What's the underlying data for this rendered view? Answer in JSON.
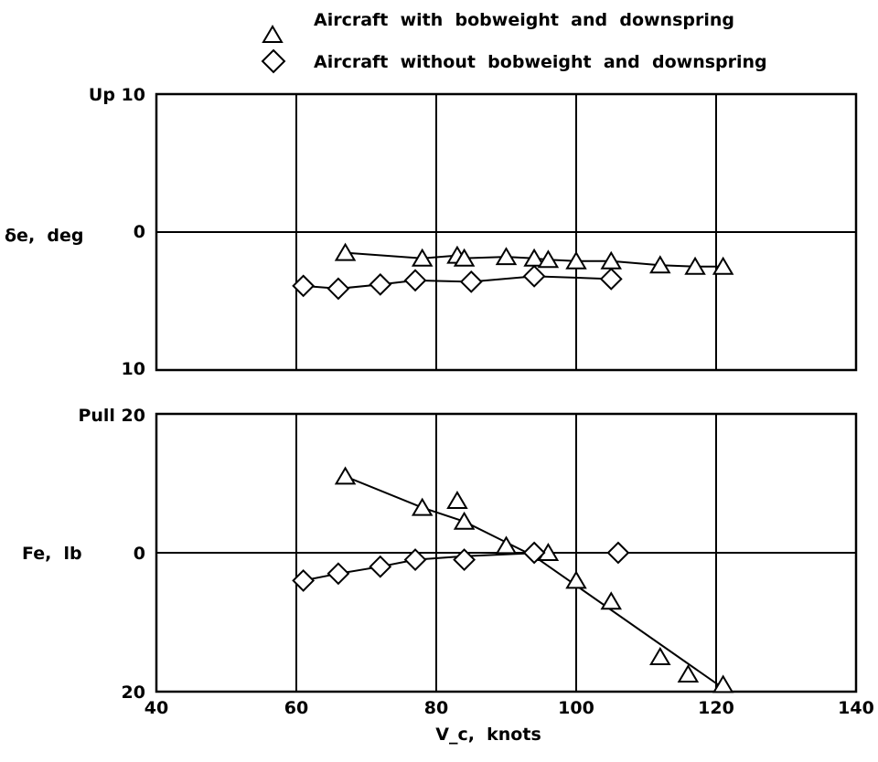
{
  "legend": {
    "items": [
      {
        "marker": "triangle",
        "label": "Aircraft  with  bobweight  and  downspring"
      },
      {
        "marker": "diamond",
        "label": "Aircraft  without  bobweight  and  downspring"
      }
    ]
  },
  "chart_data": [
    {
      "type": "line",
      "panel": "top",
      "ylabel": "δe,  deg",
      "xlim": [
        40,
        140
      ],
      "ylim": [
        -10,
        10
      ],
      "ytick_labels": [
        {
          "value": 10,
          "text": "Up 10"
        },
        {
          "value": 0,
          "text": "0"
        },
        {
          "value": -10,
          "text": "10"
        }
      ],
      "grid": true,
      "series": [
        {
          "name": "Aircraft  with  bobweight  and  downspring",
          "marker": "triangle",
          "x": [
            67,
            78,
            83,
            84,
            90,
            94,
            96,
            100,
            105,
            112,
            117,
            121
          ],
          "y": [
            -1.5,
            -1.9,
            -1.7,
            -1.9,
            -1.8,
            -1.9,
            -2.0,
            -2.1,
            -2.1,
            -2.4,
            -2.5,
            -2.5
          ]
        },
        {
          "name": "Aircraft  without  bobweight  and  downspring",
          "marker": "diamond",
          "x": [
            61,
            66,
            72,
            77,
            85,
            94,
            105
          ],
          "y": [
            -3.9,
            -4.1,
            -3.8,
            -3.5,
            -3.6,
            -3.2,
            -3.4
          ]
        }
      ]
    },
    {
      "type": "line",
      "panel": "bottom",
      "xlabel": "V_c,  knots",
      "ylabel": "Fe,  lb",
      "xlim": [
        40,
        140
      ],
      "ylim": [
        -20,
        20
      ],
      "xticks": [
        40,
        60,
        80,
        100,
        120,
        140
      ],
      "ytick_labels": [
        {
          "value": 20,
          "text": "Pull 20"
        },
        {
          "value": 0,
          "text": "0"
        },
        {
          "value": -20,
          "text": "20"
        }
      ],
      "grid": true,
      "series": [
        {
          "name": "Aircraft  with  bobweight  and  downspring",
          "marker": "triangle",
          "x": [
            67,
            78,
            83,
            84,
            90,
            96,
            100,
            105,
            112,
            116,
            121
          ],
          "y": [
            11,
            6.5,
            7.5,
            4.5,
            1,
            0,
            -4,
            -7,
            -15,
            -17.5,
            -19
          ],
          "line": {
            "x": [
              67,
              78,
              84,
              90,
              94,
              121
            ],
            "y": [
              11,
              6.5,
              4.5,
              1.5,
              -0.5,
              -19.5
            ]
          }
        },
        {
          "name": "Aircraft  without  bobweight  and  downspring",
          "marker": "diamond",
          "x": [
            61,
            66,
            72,
            77,
            84,
            94,
            106
          ],
          "y": [
            -4,
            -3,
            -2,
            -1,
            -1,
            0,
            0
          ],
          "line": {
            "x": [
              61,
              66,
              72,
              77,
              84,
              95
            ],
            "y": [
              -4,
              -3,
              -2,
              -1,
              -0.5,
              0
            ]
          }
        }
      ]
    }
  ]
}
